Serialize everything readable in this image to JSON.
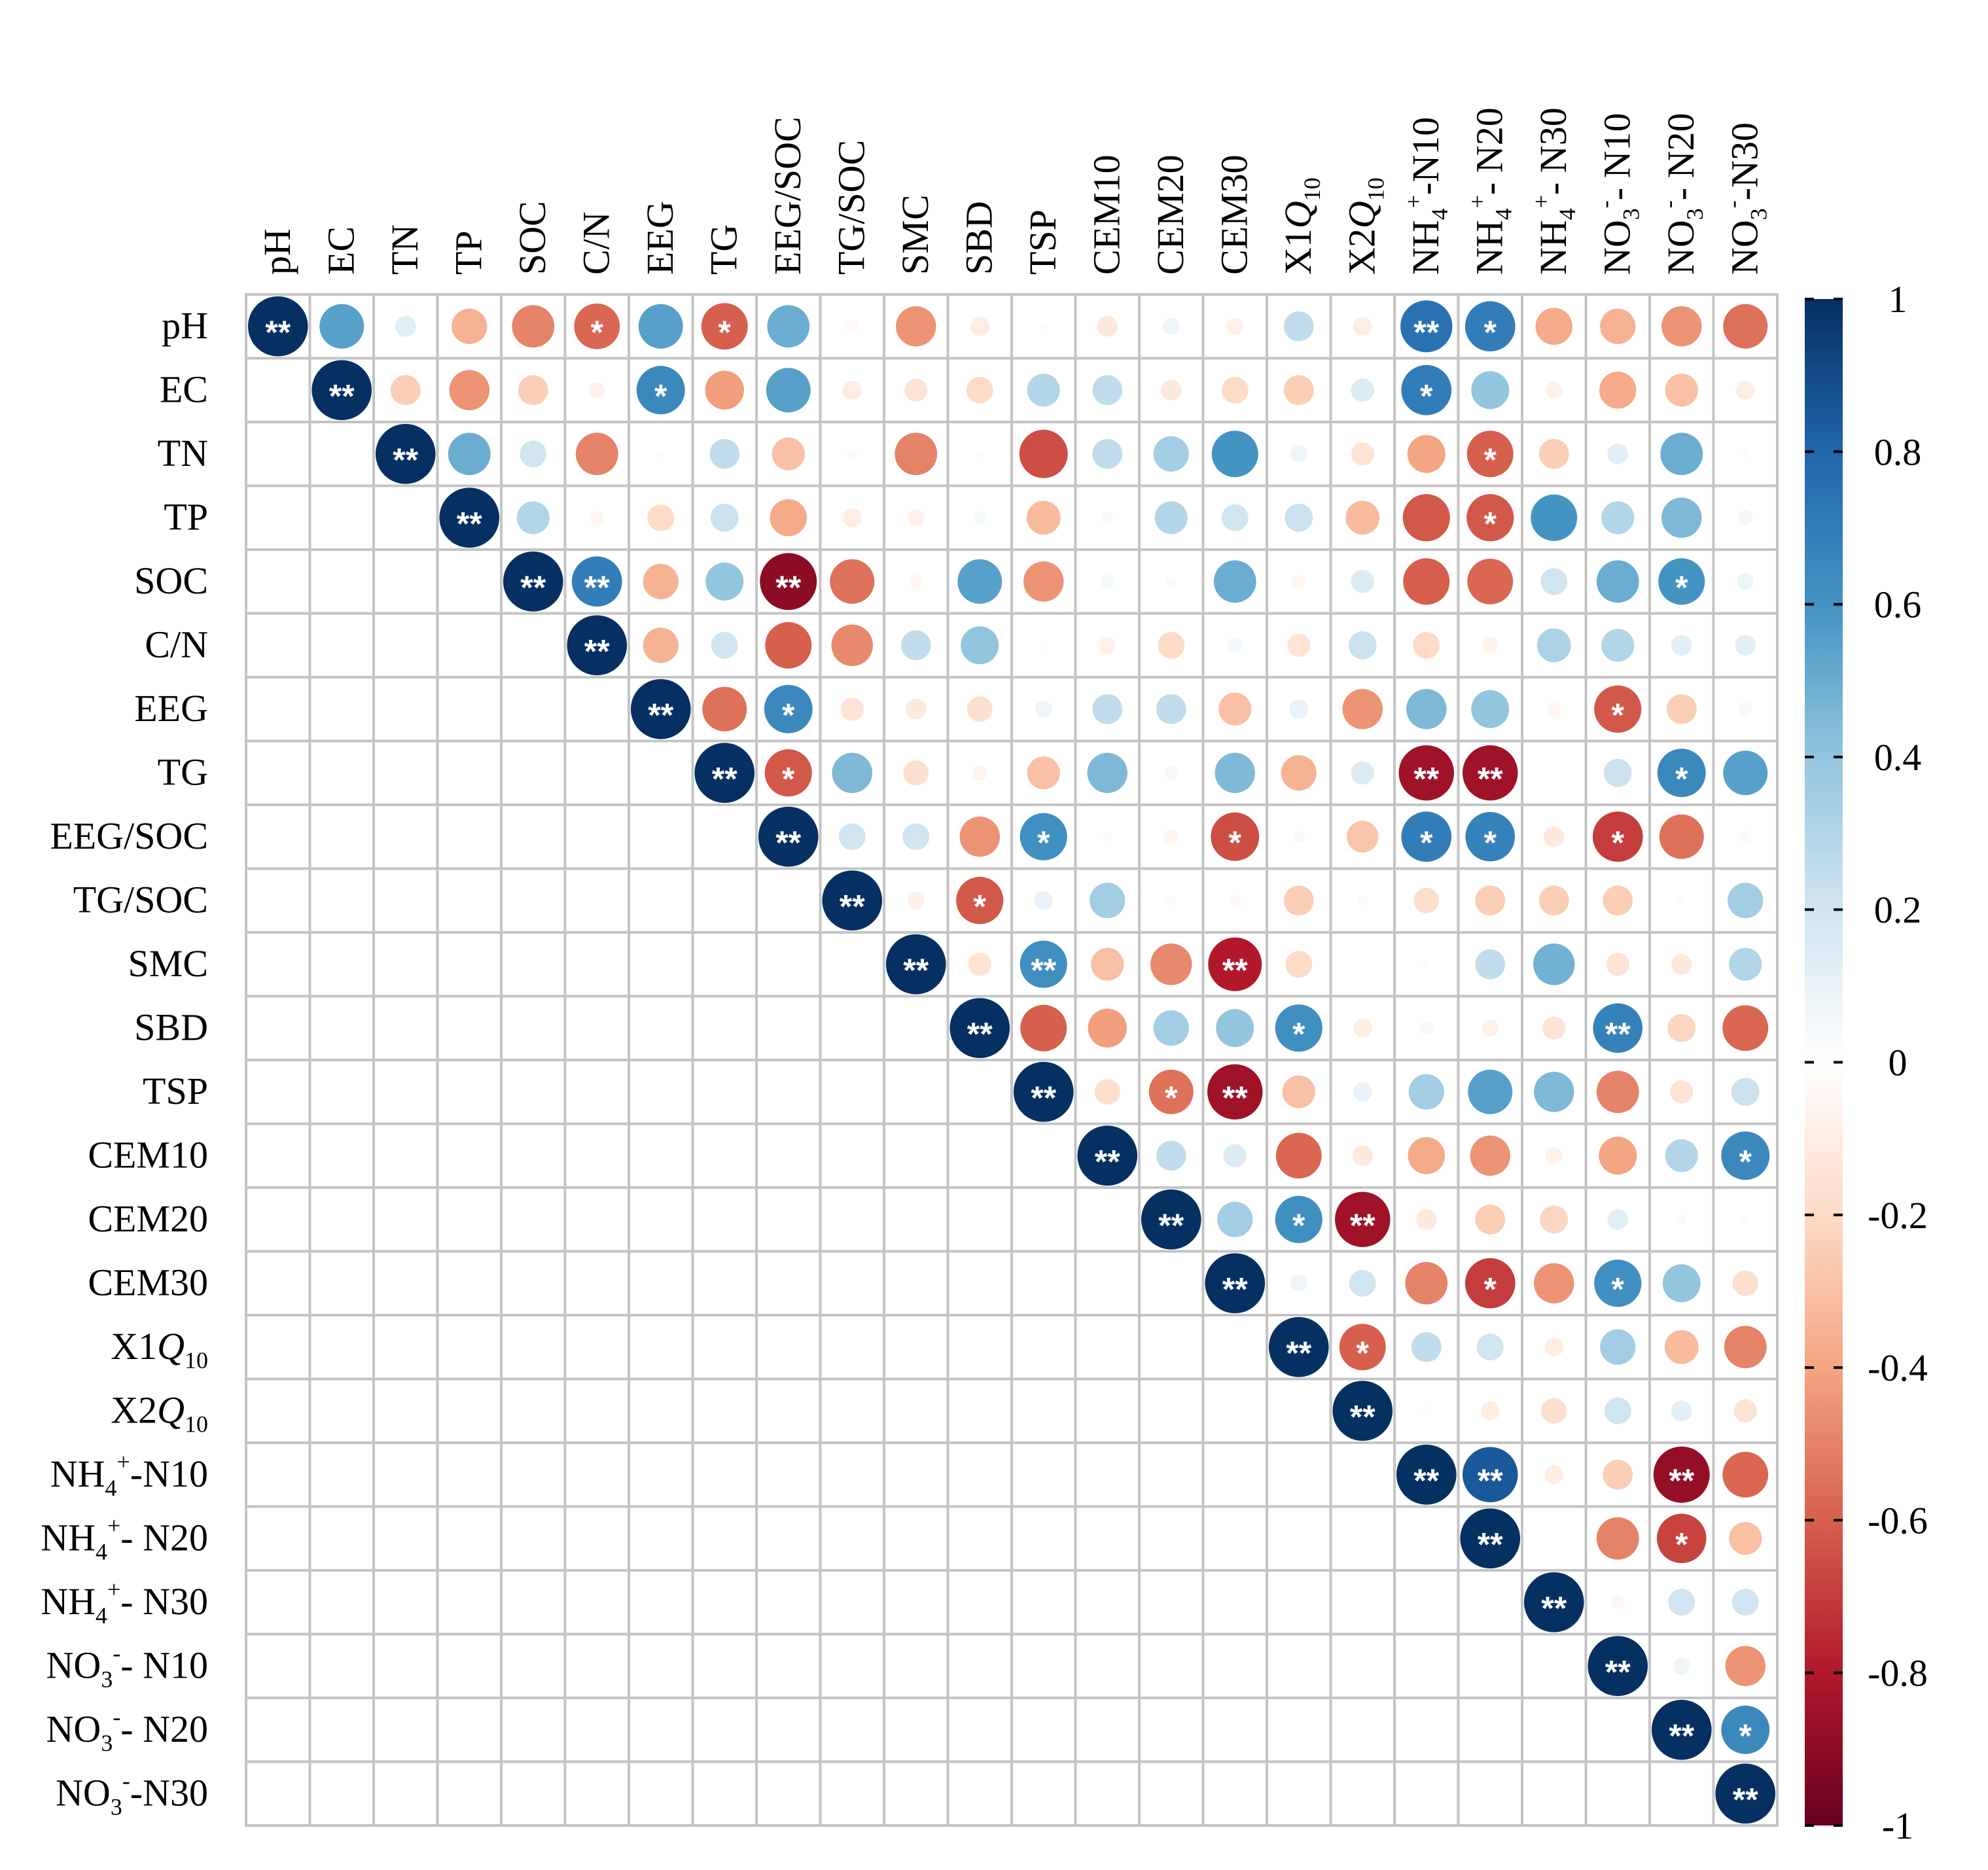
{
  "chart_data": {
    "type": "heatmap",
    "style": "corrplot-upper-circles",
    "variables": [
      {
        "id": "pH",
        "base": "pH"
      },
      {
        "id": "EC",
        "base": "EC"
      },
      {
        "id": "TN",
        "base": "TN"
      },
      {
        "id": "TP",
        "base": "TP"
      },
      {
        "id": "SOC",
        "base": "SOC"
      },
      {
        "id": "C/N",
        "base": "C/N"
      },
      {
        "id": "EEG",
        "base": "EEG"
      },
      {
        "id": "TG",
        "base": "TG"
      },
      {
        "id": "EEG/SOC",
        "base": "EEG/SOC"
      },
      {
        "id": "TG/SOC",
        "base": "TG/SOC"
      },
      {
        "id": "SMC",
        "base": "SMC"
      },
      {
        "id": "SBD",
        "base": "SBD"
      },
      {
        "id": "TSP",
        "base": "TSP"
      },
      {
        "id": "CEM10",
        "base": "CEM10"
      },
      {
        "id": "CEM20",
        "base": "CEM20"
      },
      {
        "id": "CEM30",
        "base": "CEM30"
      },
      {
        "id": "X1Q10",
        "base": "X1",
        "italic": "Q",
        "sub": "10"
      },
      {
        "id": "X2Q10",
        "base": "X2",
        "italic": "Q",
        "sub": "10"
      },
      {
        "id": "NH4+-N10",
        "base": "NH",
        "sub": "4",
        "sup": "+",
        "tail": "-N10"
      },
      {
        "id": "NH4+- N20",
        "base": "NH",
        "sub": "4",
        "sup": "+",
        "tail": "- N20"
      },
      {
        "id": "NH4+- N30",
        "base": "NH",
        "sub": "4",
        "sup": "+",
        "tail": "- N30"
      },
      {
        "id": "NO3-- N10",
        "base": "NO",
        "sub": "3",
        "sup": "-",
        "tail": "- N10"
      },
      {
        "id": "NO3-- N20",
        "base": "NO",
        "sub": "3",
        "sup": "-",
        "tail": "- N20"
      },
      {
        "id": "NO3--N30",
        "base": "NO",
        "sub": "3",
        "sup": "-",
        "tail": "-N30"
      }
    ],
    "correlations": [
      [
        1.0,
        0.55,
        0.12,
        -0.35,
        -0.5,
        -0.58,
        0.55,
        -0.6,
        0.5,
        -0.04,
        -0.45,
        -0.1,
        -0.02,
        -0.12,
        0.08,
        -0.08,
        0.25,
        -0.1,
        0.75,
        0.7,
        -0.38,
        -0.35,
        -0.45,
        -0.55
      ],
      [
        null,
        1.0,
        -0.25,
        -0.45,
        -0.25,
        -0.07,
        0.65,
        -0.42,
        0.55,
        -0.1,
        -0.15,
        -0.2,
        0.3,
        0.25,
        -0.12,
        -0.2,
        -0.25,
        0.15,
        0.7,
        0.4,
        -0.08,
        -0.38,
        -0.3,
        -0.1
      ],
      [
        null,
        null,
        1.0,
        0.5,
        0.2,
        -0.5,
        0.02,
        0.25,
        -0.3,
        0.03,
        -0.5,
        0.02,
        -0.65,
        0.25,
        0.35,
        0.6,
        0.08,
        -0.15,
        -0.4,
        -0.6,
        -0.25,
        0.12,
        0.5,
        0.02
      ],
      [
        null,
        null,
        null,
        1.0,
        0.3,
        -0.05,
        -0.2,
        0.22,
        -0.38,
        -0.1,
        -0.08,
        0.05,
        -0.32,
        0.04,
        0.3,
        0.2,
        0.22,
        -0.32,
        -0.62,
        -0.62,
        0.6,
        0.3,
        0.45,
        0.06
      ],
      [
        null,
        null,
        null,
        null,
        1.0,
        0.7,
        -0.35,
        0.4,
        -0.9,
        -0.55,
        -0.05,
        0.55,
        -0.45,
        0.05,
        0.03,
        0.5,
        -0.05,
        0.15,
        -0.6,
        -0.58,
        0.2,
        0.5,
        0.6,
        0.08
      ],
      [
        null,
        null,
        null,
        null,
        null,
        1.0,
        -0.35,
        0.2,
        -0.6,
        -0.48,
        0.25,
        0.4,
        -0.02,
        -0.08,
        -0.2,
        0.06,
        -0.15,
        0.22,
        -0.2,
        -0.07,
        0.32,
        0.3,
        0.12,
        0.12
      ],
      [
        null,
        null,
        null,
        null,
        null,
        null,
        1.0,
        -0.55,
        0.65,
        -0.15,
        -0.12,
        -0.18,
        0.08,
        0.25,
        0.25,
        -0.3,
        0.1,
        -0.45,
        0.45,
        0.4,
        -0.05,
        -0.62,
        -0.25,
        0.05
      ],
      [
        null,
        null,
        null,
        null,
        null,
        null,
        null,
        1.0,
        -0.62,
        0.45,
        -0.18,
        -0.06,
        -0.3,
        0.45,
        0.05,
        0.45,
        -0.35,
        0.15,
        -0.85,
        -0.85,
        0.0,
        0.22,
        0.65,
        0.55
      ],
      [
        null,
        null,
        null,
        null,
        null,
        null,
        null,
        null,
        1.0,
        0.2,
        0.2,
        -0.45,
        0.62,
        -0.03,
        -0.06,
        -0.65,
        0.04,
        -0.28,
        0.7,
        0.68,
        -0.12,
        -0.7,
        -0.55,
        -0.04
      ],
      [
        null,
        null,
        null,
        null,
        null,
        null,
        null,
        null,
        null,
        1.0,
        -0.08,
        -0.62,
        0.1,
        0.35,
        -0.03,
        -0.04,
        -0.25,
        0.03,
        -0.18,
        -0.25,
        -0.25,
        -0.25,
        0.02,
        0.35
      ],
      [
        null,
        null,
        null,
        null,
        null,
        null,
        null,
        null,
        null,
        null,
        1.0,
        -0.15,
        0.62,
        -0.3,
        -0.48,
        -0.8,
        -0.2,
        null,
        -0.02,
        0.25,
        0.48,
        -0.15,
        -0.12,
        0.3
      ],
      [
        null,
        null,
        null,
        null,
        null,
        null,
        null,
        null,
        null,
        null,
        null,
        1.0,
        -0.6,
        -0.42,
        0.35,
        0.4,
        0.62,
        -0.1,
        0.05,
        -0.08,
        -0.15,
        0.68,
        -0.22,
        -0.58
      ],
      [
        null,
        null,
        null,
        null,
        null,
        null,
        null,
        null,
        null,
        null,
        null,
        null,
        1.0,
        -0.18,
        -0.55,
        -0.85,
        -0.3,
        0.1,
        0.35,
        0.55,
        0.45,
        -0.5,
        -0.15,
        0.22
      ],
      [
        null,
        null,
        null,
        null,
        null,
        null,
        null,
        null,
        null,
        null,
        null,
        null,
        null,
        1.0,
        0.25,
        0.15,
        -0.58,
        -0.12,
        -0.38,
        -0.45,
        -0.08,
        -0.4,
        0.3,
        0.65
      ],
      [
        null,
        null,
        null,
        null,
        null,
        null,
        null,
        null,
        null,
        null,
        null,
        null,
        null,
        null,
        1.0,
        0.35,
        0.62,
        -0.85,
        -0.12,
        -0.25,
        -0.22,
        0.12,
        -0.03,
        -0.02
      ],
      [
        null,
        null,
        null,
        null,
        null,
        null,
        null,
        null,
        null,
        null,
        null,
        null,
        null,
        null,
        null,
        1.0,
        0.08,
        0.2,
        -0.5,
        -0.7,
        -0.45,
        0.62,
        0.4,
        -0.18
      ],
      [
        null,
        null,
        null,
        null,
        null,
        null,
        null,
        null,
        null,
        null,
        null,
        null,
        null,
        null,
        null,
        null,
        1.0,
        -0.6,
        0.25,
        0.2,
        -0.1,
        0.35,
        -0.32,
        -0.5
      ],
      [
        null,
        null,
        null,
        null,
        null,
        null,
        null,
        null,
        null,
        null,
        null,
        null,
        null,
        null,
        null,
        null,
        null,
        1.0,
        -0.02,
        -0.1,
        -0.18,
        0.2,
        0.12,
        -0.15
      ],
      [
        null,
        null,
        null,
        null,
        null,
        null,
        null,
        null,
        null,
        null,
        null,
        null,
        null,
        null,
        null,
        null,
        null,
        null,
        1.0,
        0.85,
        -0.1,
        -0.25,
        -0.88,
        -0.58
      ],
      [
        null,
        null,
        null,
        null,
        null,
        null,
        null,
        null,
        null,
        null,
        null,
        null,
        null,
        null,
        null,
        null,
        null,
        null,
        null,
        1.0,
        null,
        -0.5,
        -0.68,
        -0.3
      ],
      [
        null,
        null,
        null,
        null,
        null,
        null,
        null,
        null,
        null,
        null,
        null,
        null,
        null,
        null,
        null,
        null,
        null,
        null,
        null,
        null,
        1.0,
        -0.05,
        0.2,
        0.2
      ],
      [
        null,
        null,
        null,
        null,
        null,
        null,
        null,
        null,
        null,
        null,
        null,
        null,
        null,
        null,
        null,
        null,
        null,
        null,
        null,
        null,
        null,
        1.0,
        0.08,
        -0.45
      ],
      [
        null,
        null,
        null,
        null,
        null,
        null,
        null,
        null,
        null,
        null,
        null,
        null,
        null,
        null,
        null,
        null,
        null,
        null,
        null,
        null,
        null,
        null,
        1.0,
        0.65
      ],
      [
        null,
        null,
        null,
        null,
        null,
        null,
        null,
        null,
        null,
        null,
        null,
        null,
        null,
        null,
        null,
        null,
        null,
        null,
        null,
        null,
        null,
        null,
        null,
        1.0
      ]
    ],
    "significance": [
      [
        "**",
        "",
        "",
        "",
        "",
        "*",
        "",
        "*",
        "",
        "",
        "",
        "",
        "",
        "",
        "",
        "",
        "",
        "",
        "**",
        "*",
        "",
        "",
        "",
        ""
      ],
      [
        "",
        "**",
        "",
        "",
        "",
        "",
        "*",
        "",
        "",
        "",
        "",
        "",
        "",
        "",
        "",
        "",
        "",
        "",
        "*",
        "",
        "",
        "",
        "",
        ""
      ],
      [
        "",
        "",
        "**",
        "",
        "",
        "",
        "",
        "",
        "",
        "",
        "",
        "",
        "",
        "",
        "",
        "",
        "",
        "",
        "",
        "*",
        "",
        "",
        "",
        ""
      ],
      [
        "",
        "",
        "",
        "**",
        "",
        "",
        "",
        "",
        "",
        "",
        "",
        "",
        "",
        "",
        "",
        "",
        "",
        "",
        "",
        "*",
        "",
        "",
        "",
        ""
      ],
      [
        "",
        "",
        "",
        "",
        "**",
        "**",
        "",
        "",
        "**",
        "",
        "",
        "",
        "",
        "",
        "",
        "",
        "",
        "",
        "",
        "",
        "",
        "",
        "*",
        ""
      ],
      [
        "",
        "",
        "",
        "",
        "",
        "**",
        "",
        "",
        "",
        "",
        "",
        "",
        "",
        "",
        "",
        "",
        "",
        "",
        "",
        "",
        "",
        "",
        "",
        ""
      ],
      [
        "",
        "",
        "",
        "",
        "",
        "",
        "**",
        "",
        "*",
        "",
        "",
        "",
        "",
        "",
        "",
        "",
        "",
        "",
        "",
        "",
        "",
        "*",
        "",
        ""
      ],
      [
        "",
        "",
        "",
        "",
        "",
        "",
        "",
        "**",
        "*",
        "",
        "",
        "",
        "",
        "",
        "",
        "",
        "",
        "",
        "**",
        "**",
        "",
        "",
        "*",
        ""
      ],
      [
        "",
        "",
        "",
        "",
        "",
        "",
        "",
        "",
        "**",
        "",
        "",
        "",
        "*",
        "",
        "",
        "*",
        "",
        "",
        "*",
        "*",
        "",
        "*",
        "",
        ""
      ],
      [
        "",
        "",
        "",
        "",
        "",
        "",
        "",
        "",
        "",
        "**",
        "",
        "*",
        "",
        "",
        "",
        "",
        "",
        "",
        "",
        "",
        "",
        "",
        "",
        ""
      ],
      [
        "",
        "",
        "",
        "",
        "",
        "",
        "",
        "",
        "",
        "",
        "**",
        "",
        "**",
        "",
        "",
        "**",
        "",
        "",
        "",
        "",
        "",
        "",
        "",
        ""
      ],
      [
        "",
        "",
        "",
        "",
        "",
        "",
        "",
        "",
        "",
        "",
        "",
        "**",
        "",
        "",
        "",
        "",
        "*",
        "",
        "",
        "",
        "",
        "**",
        "",
        ""
      ],
      [
        "",
        "",
        "",
        "",
        "",
        "",
        "",
        "",
        "",
        "",
        "",
        "",
        "**",
        "",
        "*",
        "**",
        "",
        "",
        "",
        "",
        "",
        "",
        "",
        ""
      ],
      [
        "",
        "",
        "",
        "",
        "",
        "",
        "",
        "",
        "",
        "",
        "",
        "",
        "",
        "**",
        "",
        "",
        "",
        "",
        "",
        "",
        "",
        "",
        "",
        "*"
      ],
      [
        "",
        "",
        "",
        "",
        "",
        "",
        "",
        "",
        "",
        "",
        "",
        "",
        "",
        "",
        "**",
        "",
        "*",
        "**",
        "",
        "",
        "",
        "",
        "",
        ""
      ],
      [
        "",
        "",
        "",
        "",
        "",
        "",
        "",
        "",
        "",
        "",
        "",
        "",
        "",
        "",
        "",
        "**",
        "",
        "",
        "",
        "*",
        "",
        "*",
        "",
        ""
      ],
      [
        "",
        "",
        "",
        "",
        "",
        "",
        "",
        "",
        "",
        "",
        "",
        "",
        "",
        "",
        "",
        "",
        "**",
        "*",
        "",
        "",
        "",
        "",
        "",
        ""
      ],
      [
        "",
        "",
        "",
        "",
        "",
        "",
        "",
        "",
        "",
        "",
        "",
        "",
        "",
        "",
        "",
        "",
        "",
        "**",
        "",
        "",
        "",
        "",
        "",
        ""
      ],
      [
        "",
        "",
        "",
        "",
        "",
        "",
        "",
        "",
        "",
        "",
        "",
        "",
        "",
        "",
        "",
        "",
        "",
        "",
        "**",
        "**",
        "",
        "",
        "**",
        ""
      ],
      [
        "",
        "",
        "",
        "",
        "",
        "",
        "",
        "",
        "",
        "",
        "",
        "",
        "",
        "",
        "",
        "",
        "",
        "",
        "",
        "**",
        "",
        "",
        "*",
        ""
      ],
      [
        "",
        "",
        "",
        "",
        "",
        "",
        "",
        "",
        "",
        "",
        "",
        "",
        "",
        "",
        "",
        "",
        "",
        "",
        "",
        "",
        "**",
        "",
        "",
        ""
      ],
      [
        "",
        "",
        "",
        "",
        "",
        "",
        "",
        "",
        "",
        "",
        "",
        "",
        "",
        "",
        "",
        "",
        "",
        "",
        "",
        "",
        "",
        "**",
        "",
        ""
      ],
      [
        "",
        "",
        "",
        "",
        "",
        "",
        "",
        "",
        "",
        "",
        "",
        "",
        "",
        "",
        "",
        "",
        "",
        "",
        "",
        "",
        "",
        "",
        "**",
        "*"
      ],
      [
        "",
        "",
        "",
        "",
        "",
        "",
        "",
        "",
        "",
        "",
        "",
        "",
        "",
        "",
        "",
        "",
        "",
        "",
        "",
        "",
        "",
        "",
        "",
        "**"
      ]
    ],
    "colorbar": {
      "ticks": [
        "1",
        "0.8",
        "0.6",
        "0.4",
        "0.2",
        "0",
        "-0.2",
        "-0.4",
        "-0.6",
        "-0.8",
        "-1"
      ],
      "range": [
        -1,
        1
      ]
    },
    "colors": {
      "negative_strong": "#67001f",
      "negative_mid": "#d6604d",
      "negative_light": "#fddbc7",
      "neutral": "#ffffff",
      "positive_light": "#d1e5f0",
      "positive_mid": "#4393c3",
      "positive_strong": "#053061",
      "grid": "#c4c4c4"
    }
  }
}
